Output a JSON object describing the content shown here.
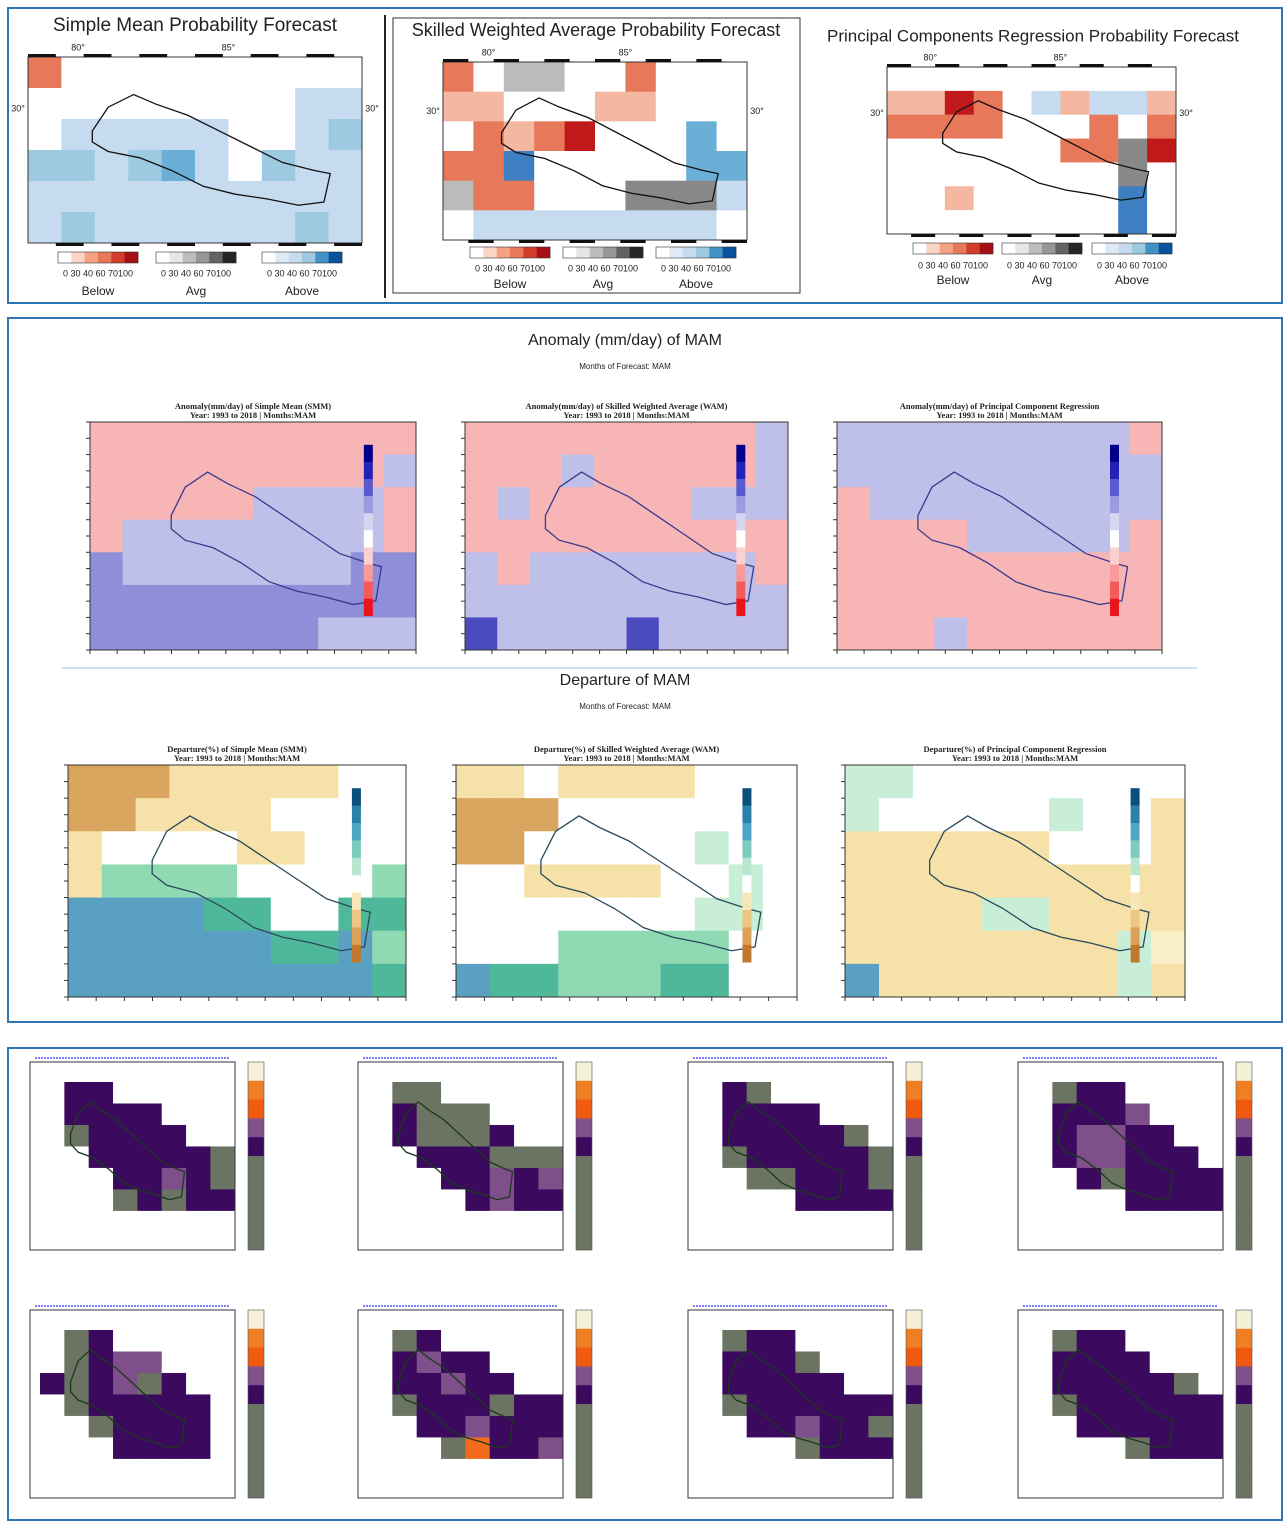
{
  "probability_forecasts": {
    "panels": [
      {
        "title": "Simple Mean Probability Forecast",
        "lon_labels": [
          "80°",
          "85°"
        ],
        "lat_label": "30°",
        "legend": [
          {
            "ticks": "0 30 40 60 70100",
            "label": "Below"
          },
          {
            "ticks": "0 30 40 60 70100",
            "label": "Avg"
          },
          {
            "ticks": "0 30 40 60 70100",
            "label": "Above"
          }
        ]
      },
      {
        "title": "Skilled Weighted Average Probability Forecast",
        "lon_labels": [
          "80°",
          "85°"
        ],
        "lat_label": "30°",
        "legend": [
          {
            "ticks": "0 30 40 60 70100",
            "label": "Below"
          },
          {
            "ticks": "0 30 40 60 70100",
            "label": "Avg"
          },
          {
            "ticks": "0 30 40 60 70100",
            "label": "Above"
          }
        ]
      },
      {
        "title": "Principal Components Regression Probability Forecast",
        "lon_labels": [
          "80°",
          "85°"
        ],
        "lat_label": "30°",
        "legend": [
          {
            "ticks": "0 30 40 60 70100",
            "label": "Below"
          },
          {
            "ticks": "0 30 40 60 70100",
            "label": "Avg"
          },
          {
            "ticks": "0 30 40 60 70100",
            "label": "Above"
          }
        ]
      }
    ]
  },
  "anomaly": {
    "title": "Anomaly (mm/day) of MAM",
    "subtitle": "Months of Forecast: MAM",
    "panels": [
      {
        "title": "Anomaly(mm/day) of Simple Mean (SMM)",
        "subtitle": "Year: 1993 to 2018 | Months:MAM"
      },
      {
        "title": "Anomaly(mm/day) of Skilled Weighted Average (WAM)",
        "subtitle": "Year: 1993 to 2018 | Months:MAM"
      },
      {
        "title": "Anomaly(mm/day) of Principal Component Regression",
        "subtitle": "Year: 1993 to 2018 | Months:MAM"
      }
    ]
  },
  "departure": {
    "title": "Departure of MAM",
    "subtitle": "Months of Forecast: MAM",
    "panels": [
      {
        "title": "Departure(%) of Simple Mean (SMM)",
        "subtitle": "Year: 1993 to 2018 | Months:MAM"
      },
      {
        "title": "Departure(%) of Skilled Weighted Average (WAM)",
        "subtitle": "Year: 1993 to 2018 | Months:MAM"
      },
      {
        "title": "Departure(%) of Principal Component Regression",
        "subtitle": "Year: 1993 to 2018 | Months:MAM"
      }
    ]
  }
}
